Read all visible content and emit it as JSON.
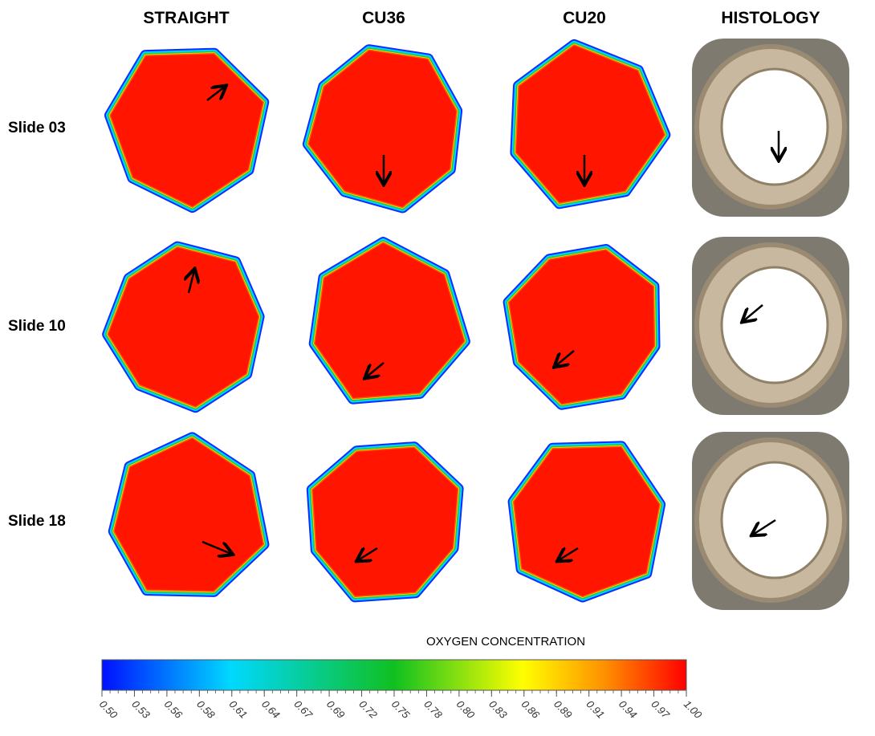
{
  "columns": [
    "STRAIGHT",
    "CU36",
    "CU20",
    "HISTOLOGY"
  ],
  "rows": [
    "Slide 03",
    "Slide 10",
    "Slide 18"
  ],
  "colorbar": {
    "title": "OXYGEN CONCENTRATION",
    "ticks": [
      "0.50",
      "0.53",
      "0.56",
      "0.58",
      "0.61",
      "0.64",
      "0.67",
      "0.69",
      "0.72",
      "0.75",
      "0.78",
      "0.80",
      "0.83",
      "0.86",
      "0.89",
      "0.91",
      "0.94",
      "0.97",
      "1.00"
    ]
  }
}
